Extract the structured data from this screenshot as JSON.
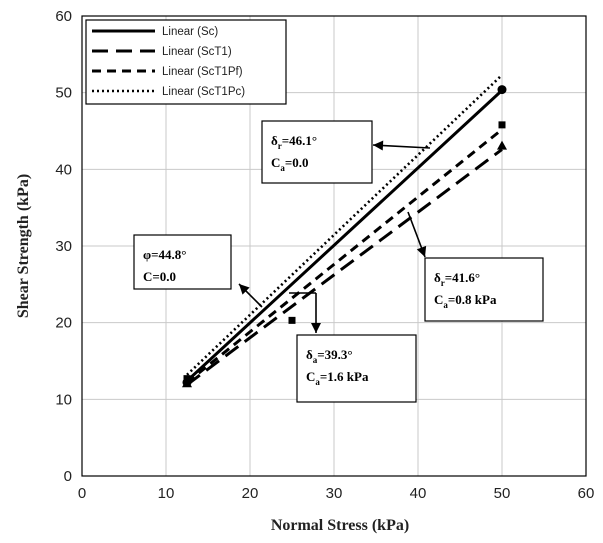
{
  "chart_data": {
    "type": "line",
    "xlabel": "Normal Stress (kPa)",
    "ylabel": "Shear Strength (kPa)",
    "xlim": [
      0,
      60
    ],
    "ylim": [
      0,
      60
    ],
    "xticks": [
      "0",
      "10",
      "20",
      "30",
      "40",
      "50",
      "60"
    ],
    "yticks": [
      "0",
      "10",
      "20",
      "30",
      "40",
      "50",
      "60"
    ],
    "grid": true,
    "legend_position": "top-left",
    "series": [
      {
        "name": "Linear (Sc)",
        "style": "solid",
        "x": [
          12.5,
          50
        ],
        "y": [
          12.4,
          50.3
        ],
        "marker": "circle",
        "marker_points": [
          [
            12.5,
            12.2
          ],
          [
            50,
            50.4
          ]
        ]
      },
      {
        "name": "Linear (ScT1)",
        "style": "long-dash",
        "x": [
          12.5,
          50
        ],
        "y": [
          11.9,
          42.6
        ],
        "marker": "triangle",
        "marker_points": [
          [
            12.5,
            12.1
          ],
          [
            50,
            43.1
          ]
        ]
      },
      {
        "name": "Linear (ScT1Pf)",
        "style": "dash",
        "x": [
          12.5,
          50
        ],
        "y": [
          12.2,
          45.2
        ],
        "marker": "square",
        "marker_points": [
          [
            12.5,
            12.7
          ],
          [
            25,
            20.3
          ],
          [
            50,
            45.8
          ]
        ]
      },
      {
        "name": "Linear (ScT1Pc)",
        "style": "dot",
        "x": [
          12.5,
          50
        ],
        "y": [
          13.2,
          52.3
        ],
        "marker": "none",
        "marker_points": []
      }
    ],
    "annotations": [
      {
        "id": "sc",
        "line1": {
          "sym": "φ",
          "sub": "",
          "value": "=44.8°"
        },
        "line2": {
          "sym": "C",
          "sub": "",
          "value": "=0.0"
        }
      },
      {
        "id": "sct1pc",
        "line1": {
          "sym": "δ",
          "sub": "r",
          "value": "=46.1°"
        },
        "line2": {
          "sym": "C",
          "sub": "a",
          "value": "=0.0"
        }
      },
      {
        "id": "sct1pf",
        "line1": {
          "sym": "δ",
          "sub": "r",
          "value": "=41.6°"
        },
        "line2": {
          "sym": "C",
          "sub": "a",
          "value": "=0.8 kPa"
        }
      },
      {
        "id": "sct1",
        "line1": {
          "sym": "δ",
          "sub": "a",
          "value": "=39.3°"
        },
        "line2": {
          "sym": "C",
          "sub": "a",
          "value": "=1.6 kPa"
        }
      }
    ]
  }
}
